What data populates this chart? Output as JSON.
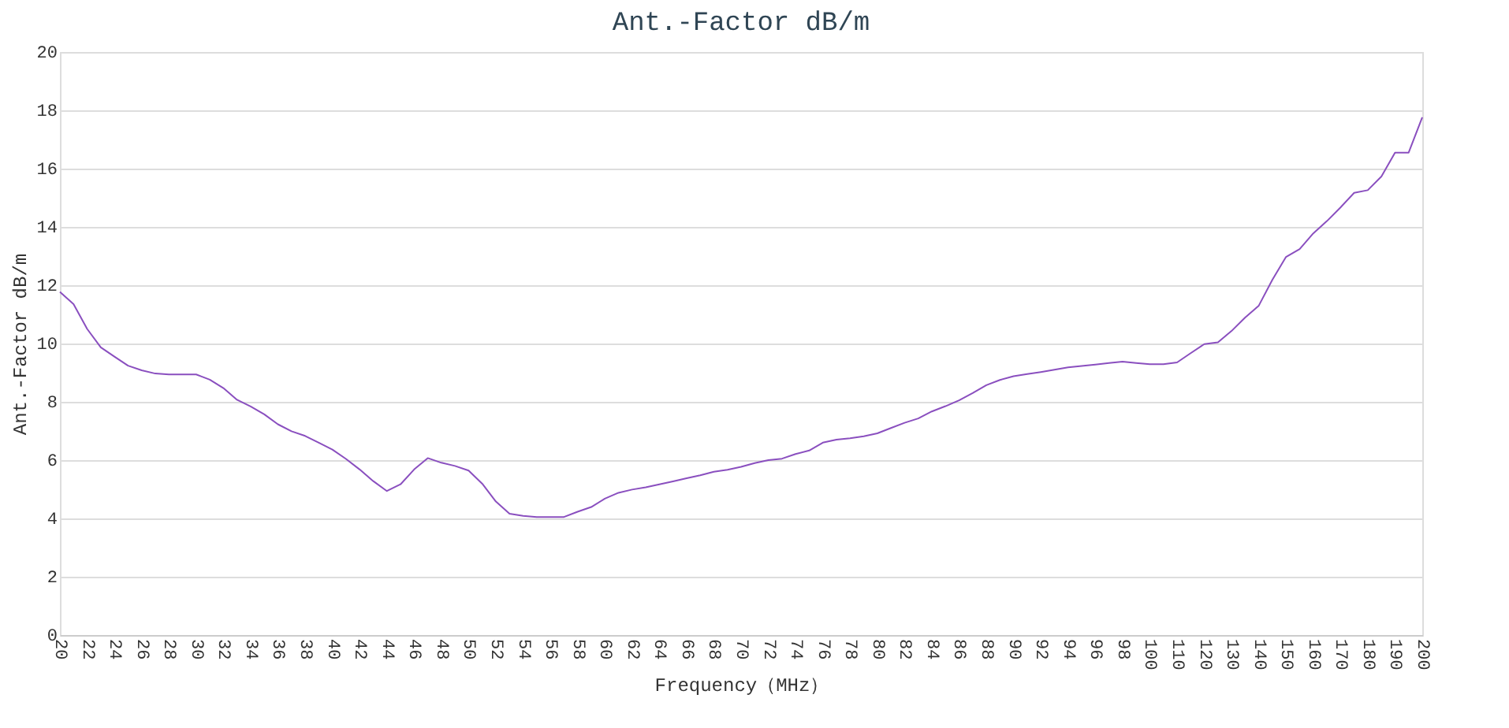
{
  "chart_data": {
    "type": "line",
    "title": "Ant.-Factor dB/m",
    "xlabel": "Frequency（MHz）",
    "ylabel": "Ant.-Factor dB/m",
    "categories": [
      "20",
      null,
      "22",
      null,
      "24",
      null,
      "26",
      null,
      "28",
      null,
      "30",
      null,
      "32",
      null,
      "34",
      null,
      "36",
      null,
      "38",
      null,
      "40",
      null,
      "42",
      null,
      "44",
      null,
      "46",
      null,
      "48",
      null,
      "50",
      null,
      "52",
      null,
      "54",
      null,
      "56",
      null,
      "58",
      null,
      "60",
      null,
      "62",
      null,
      "64",
      null,
      "66",
      null,
      "68",
      null,
      "70",
      null,
      "72",
      null,
      "74",
      null,
      "76",
      null,
      "78",
      null,
      "80",
      null,
      "82",
      null,
      "84",
      null,
      "86",
      null,
      "88",
      null,
      "90",
      null,
      "92",
      null,
      "94",
      null,
      "96",
      null,
      "98",
      null,
      "100",
      null,
      "110",
      null,
      "120",
      null,
      "130",
      null,
      "140",
      null,
      "150",
      null,
      "160",
      null,
      "170",
      null,
      "180",
      null,
      "190",
      null,
      "200"
    ],
    "series": [
      {
        "color": "#8a4fbf",
        "values": [
          11.77,
          11.35,
          10.5,
          9.87,
          9.55,
          9.24,
          9.08,
          8.97,
          8.94,
          8.94,
          8.94,
          8.76,
          8.47,
          8.07,
          7.84,
          7.57,
          7.23,
          6.99,
          6.83,
          6.6,
          6.36,
          6.04,
          5.68,
          5.28,
          4.94,
          5.17,
          5.68,
          6.07,
          5.91,
          5.8,
          5.64,
          5.19,
          4.58,
          4.16,
          4.09,
          4.05,
          4.05,
          4.05,
          4.23,
          4.39,
          4.68,
          4.88,
          4.99,
          5.07,
          5.17,
          5.27,
          5.38,
          5.48,
          5.6,
          5.67,
          5.77,
          5.9,
          6.0,
          6.05,
          6.21,
          6.33,
          6.6,
          6.7,
          6.75,
          6.82,
          6.92,
          7.1,
          7.28,
          7.43,
          7.67,
          7.85,
          8.05,
          8.3,
          8.57,
          8.75,
          8.88,
          8.95,
          9.02,
          9.1,
          9.18,
          9.23,
          9.28,
          9.33,
          9.38,
          9.33,
          9.29,
          9.29,
          9.35,
          9.67,
          9.98,
          10.04,
          10.43,
          10.89,
          11.3,
          12.19,
          12.97,
          13.24,
          13.78,
          14.2,
          14.67,
          15.17,
          15.26,
          15.73,
          16.55,
          16.55,
          17.76
        ]
      }
    ],
    "ylim": [
      0,
      20
    ],
    "yticks": [
      0,
      2,
      4,
      6,
      8,
      10,
      12,
      14,
      16,
      18,
      20
    ],
    "grid": "y",
    "legend": false
  }
}
